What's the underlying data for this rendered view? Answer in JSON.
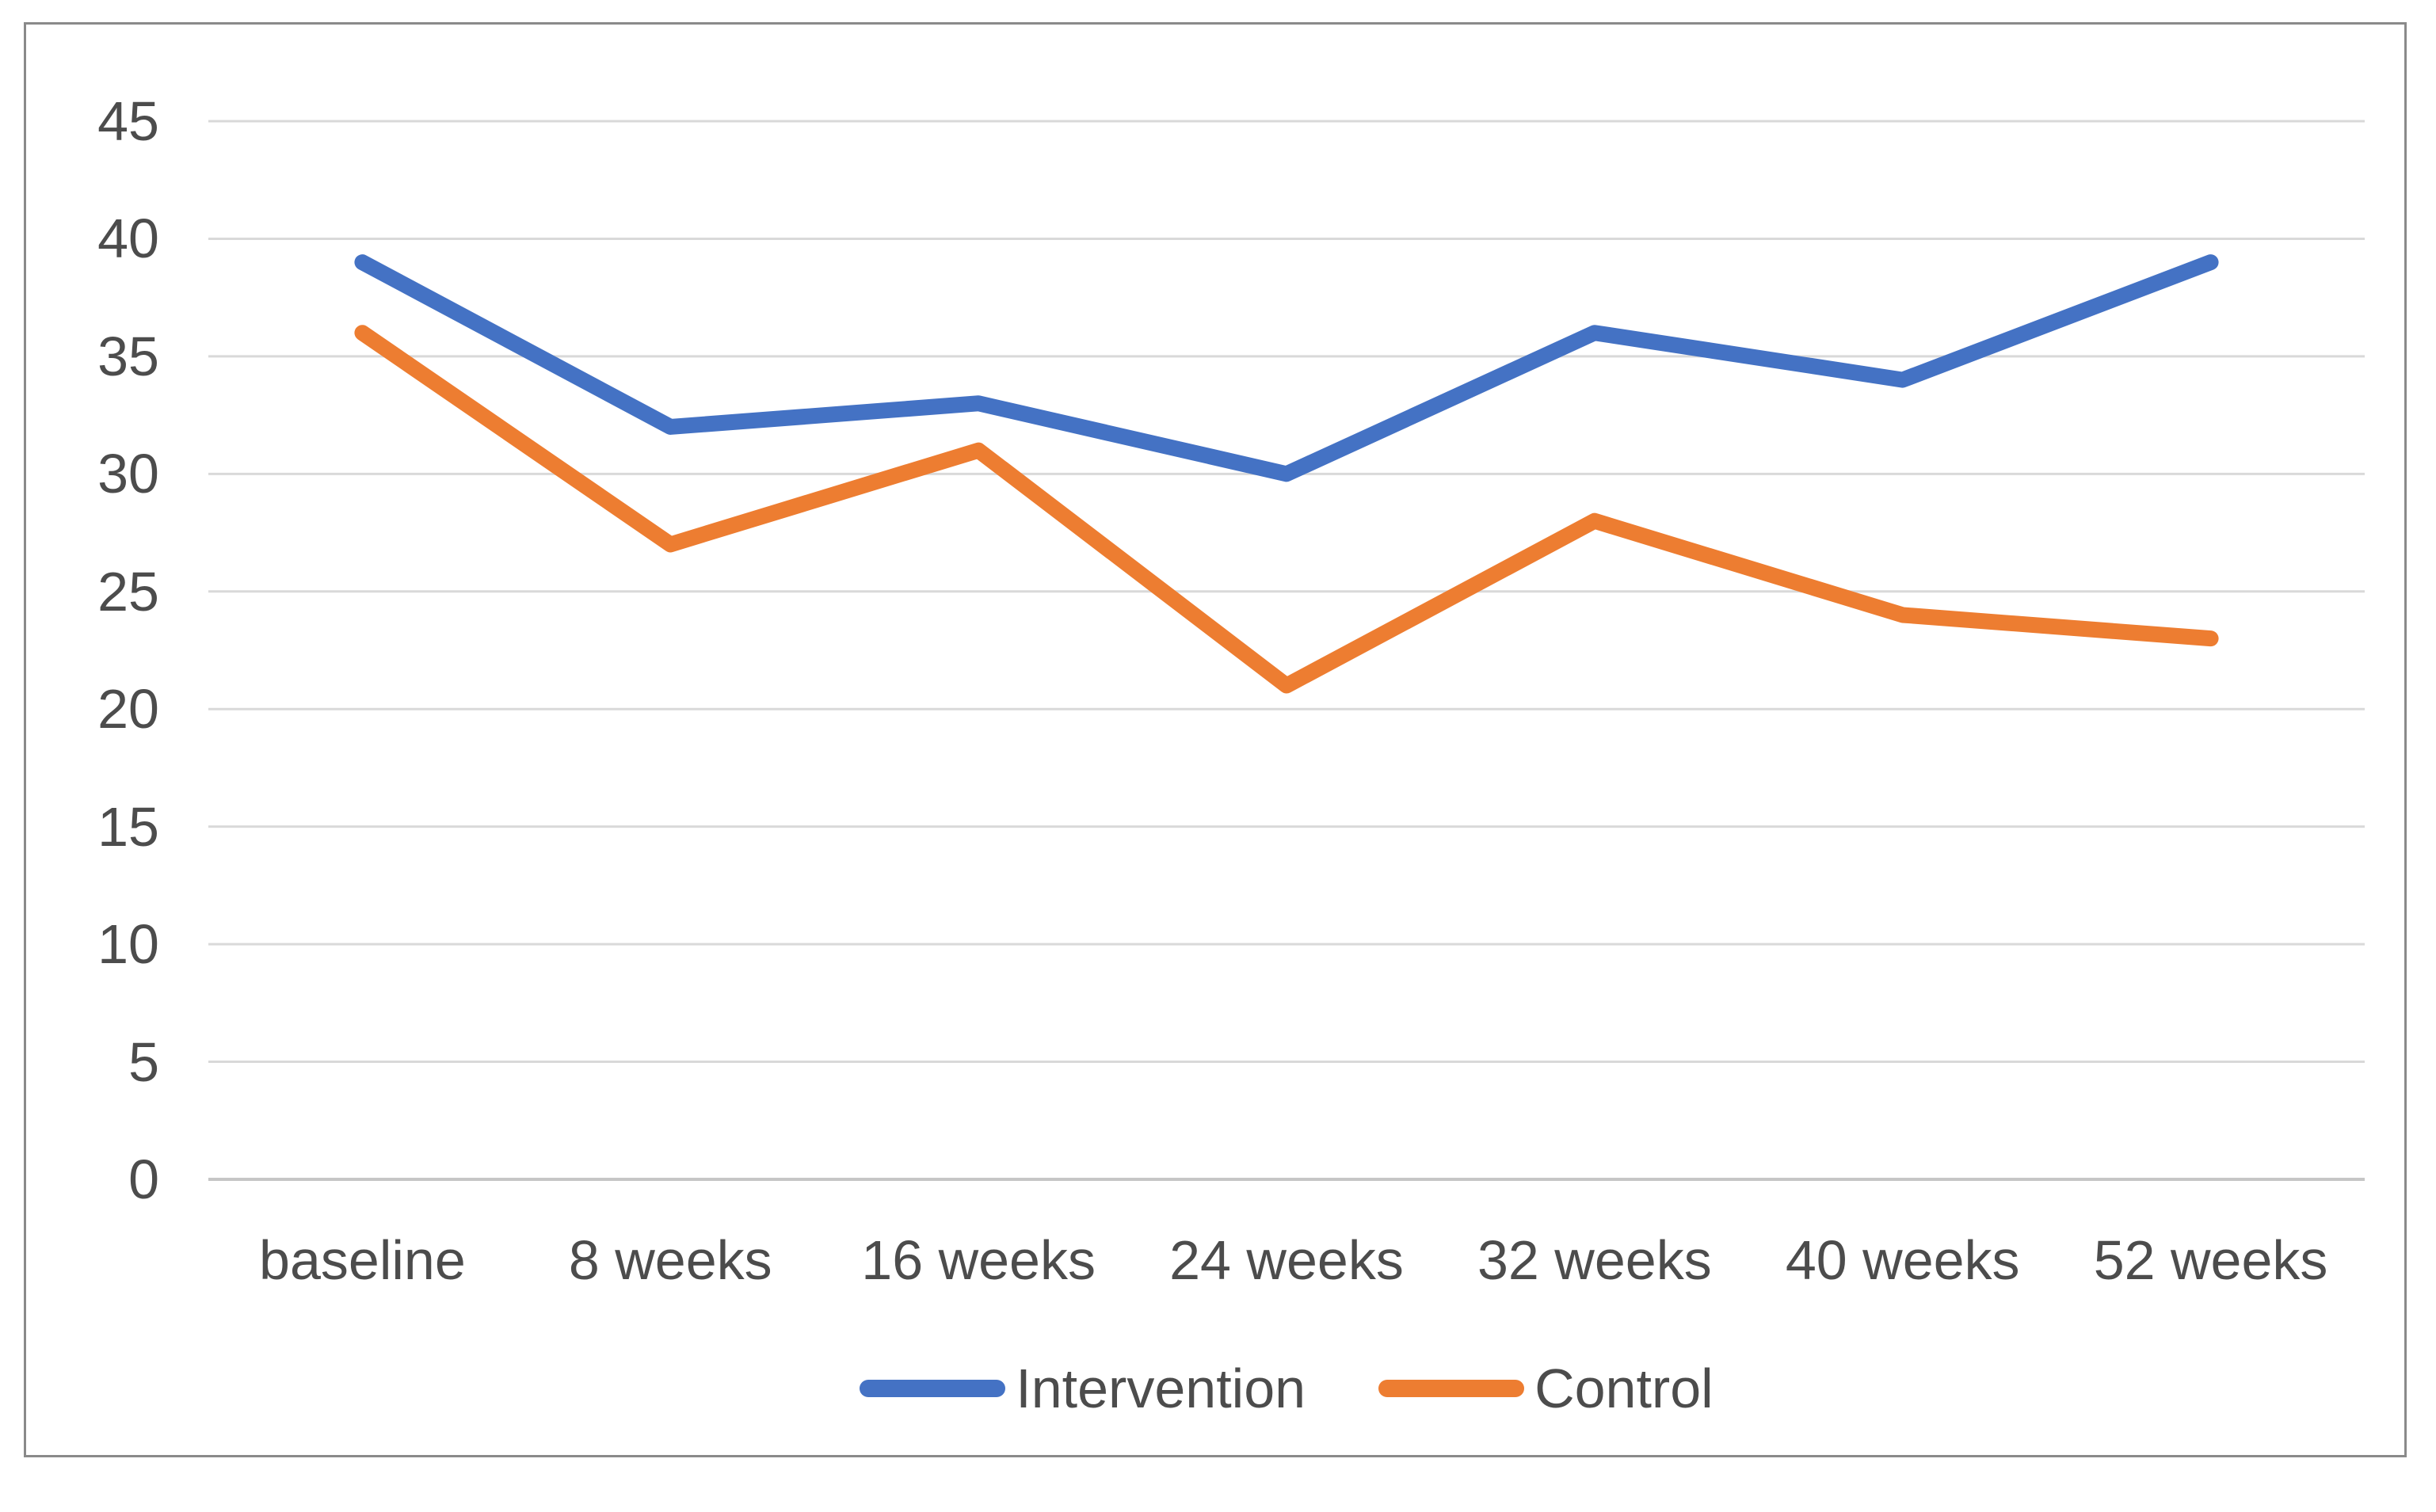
{
  "figure": {
    "background": "#ffffff",
    "border_color": "#8a8a8a"
  },
  "chart_data": {
    "type": "line",
    "title": "",
    "xlabel": "",
    "ylabel": "",
    "categories": [
      "baseline",
      "8 weeks",
      "16 weeks",
      "24 weeks",
      "32 weeks",
      "40 weeks",
      "52 weeks"
    ],
    "series": [
      {
        "name": "Intervention",
        "color": "#4472C4",
        "values": [
          39,
          32,
          33,
          30,
          36,
          34,
          39
        ]
      },
      {
        "name": "Control",
        "color": "#ED7D31",
        "values": [
          36,
          27,
          31,
          21,
          28,
          24,
          23
        ]
      }
    ],
    "ylim": [
      0,
      45
    ],
    "y_ticks": [
      0,
      5,
      10,
      15,
      20,
      25,
      30,
      35,
      40,
      45
    ],
    "grid": true,
    "gridline_color": "#d9d9d9",
    "axis_line_color": "#c6c6c6",
    "tick_label_color": "#4c4c4c",
    "line_width": 20,
    "legend_position": "bottom"
  }
}
